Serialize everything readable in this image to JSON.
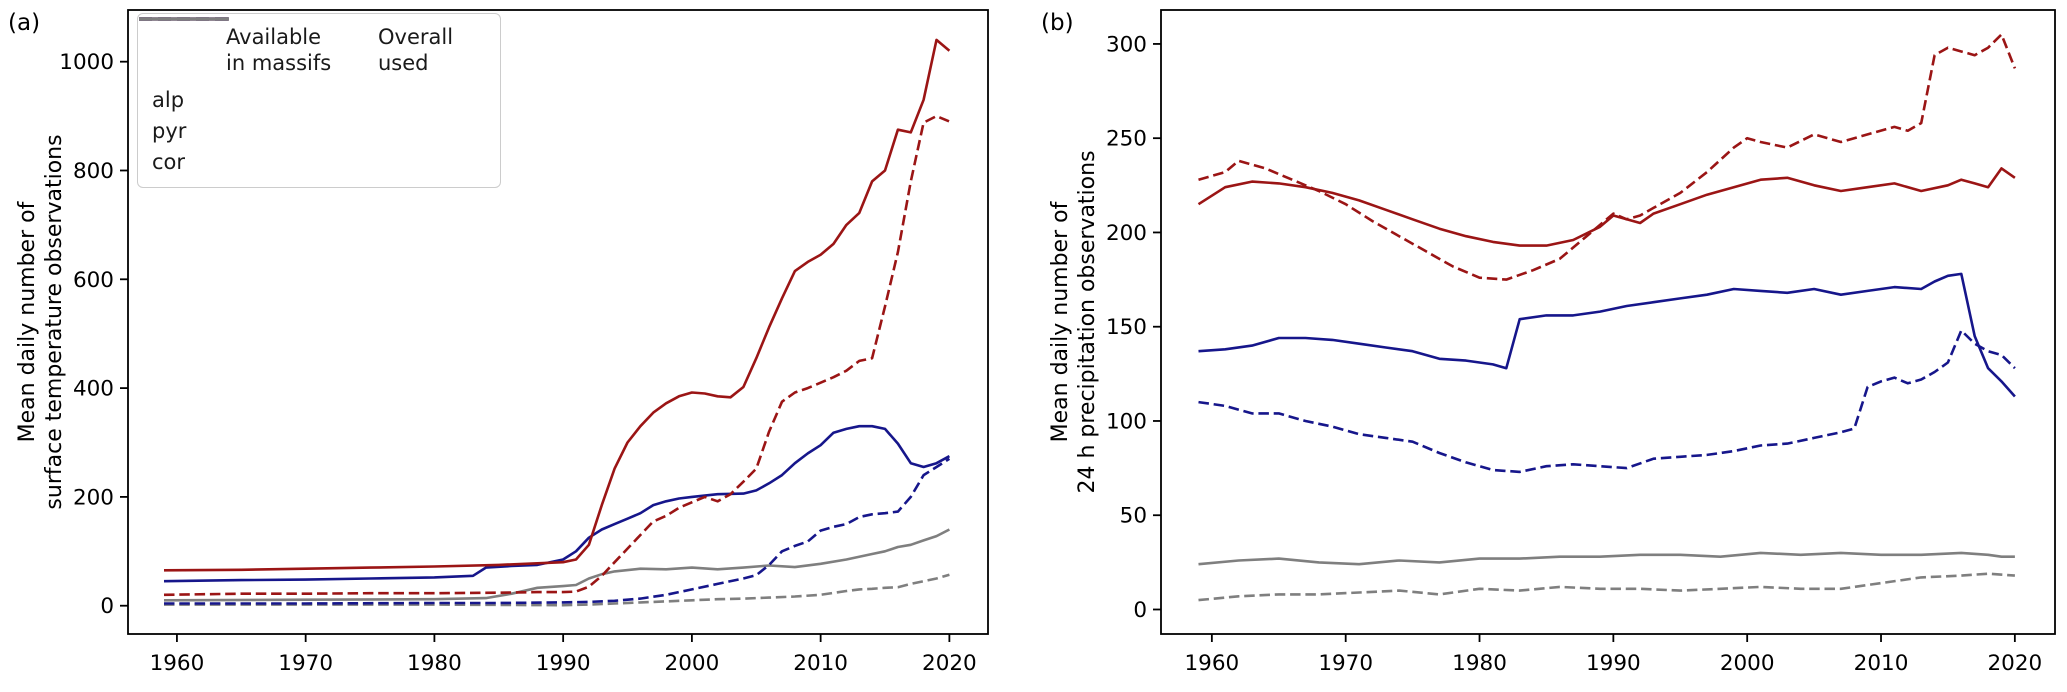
{
  "figure": {
    "background": "#ffffff"
  },
  "panels": [
    {
      "label": "(a)"
    },
    {
      "label": "(b)"
    }
  ],
  "legend": {
    "column_headers": [
      {
        "line1": "Available",
        "line2": "in massifs"
      },
      {
        "line1": "Overall",
        "line2": "used"
      }
    ],
    "rows": [
      {
        "label": "alp",
        "color": "#9b1515"
      },
      {
        "label": "pyr",
        "color": "#16168b"
      },
      {
        "label": "cor",
        "color": "#7f7f7f"
      }
    ]
  },
  "chart_data": [
    {
      "type": "line",
      "panel_label": "(a)",
      "ylabel_lines": [
        "Mean daily number of",
        "surface temperature observations"
      ],
      "xlabel": "",
      "xlim": [
        1956.2,
        2023
      ],
      "ylim": [
        -52,
        1095
      ],
      "xticks": [
        1960,
        1970,
        1980,
        1990,
        2000,
        2010,
        2020
      ],
      "yticks": [
        0,
        200,
        400,
        600,
        800,
        1000
      ],
      "grid": false,
      "legend_position": "upper-left",
      "series": [
        {
          "id": "cor-available",
          "name": "cor available in massifs",
          "color": "#7f7f7f",
          "dash": true,
          "x": [
            1959,
            1970,
            1980,
            1990,
            1992,
            1994,
            1996,
            1998,
            2000,
            2002,
            2004,
            2006,
            2008,
            2010,
            2012,
            2013,
            2014,
            2015,
            2016,
            2017,
            2018,
            2019,
            2020
          ],
          "y": [
            2,
            2,
            2,
            1,
            2,
            4,
            6,
            8,
            10,
            12,
            13,
            15,
            17,
            20,
            27,
            30,
            31,
            33,
            34,
            40,
            45,
            50,
            57
          ]
        },
        {
          "id": "cor-used",
          "name": "cor overall used",
          "color": "#7f7f7f",
          "dash": false,
          "x": [
            1959,
            1970,
            1980,
            1984,
            1986,
            1988,
            1990,
            1991,
            1992,
            1993,
            1994,
            1996,
            1998,
            2000,
            2002,
            2004,
            2006,
            2008,
            2010,
            2012,
            2014,
            2015,
            2016,
            2017,
            2018,
            2019,
            2020
          ],
          "y": [
            10,
            11,
            12,
            14,
            22,
            33,
            36,
            38,
            50,
            58,
            63,
            68,
            67,
            70,
            67,
            70,
            74,
            71,
            77,
            85,
            95,
            100,
            108,
            112,
            120,
            128,
            140
          ]
        },
        {
          "id": "pyr-available",
          "name": "pyr available in massifs",
          "color": "#16168b",
          "dash": true,
          "x": [
            1959,
            1970,
            1980,
            1985,
            1990,
            1992,
            1994,
            1996,
            1998,
            2000,
            2002,
            2004,
            2005,
            2006,
            2007,
            2008,
            2009,
            2010,
            2011,
            2012,
            2013,
            2014,
            2015,
            2016,
            2017,
            2018,
            2019,
            2020
          ],
          "y": [
            4,
            4,
            5,
            5,
            6,
            7,
            9,
            13,
            20,
            30,
            40,
            50,
            56,
            75,
            100,
            110,
            118,
            138,
            145,
            150,
            163,
            168,
            170,
            173,
            200,
            240,
            255,
            270
          ]
        },
        {
          "id": "pyr-used",
          "name": "pyr overall used",
          "color": "#16168b",
          "dash": false,
          "x": [
            1959,
            1965,
            1970,
            1975,
            1980,
            1983,
            1984,
            1986,
            1988,
            1990,
            1991,
            1992,
            1993,
            1994,
            1995,
            1996,
            1997,
            1998,
            1999,
            2000,
            2002,
            2004,
            2005,
            2006,
            2007,
            2008,
            2009,
            2010,
            2011,
            2012,
            2013,
            2014,
            2015,
            2016,
            2017,
            2018,
            2019,
            2020
          ],
          "y": [
            45,
            47,
            48,
            50,
            52,
            55,
            70,
            73,
            75,
            85,
            100,
            125,
            140,
            150,
            160,
            170,
            185,
            192,
            197,
            200,
            205,
            206,
            212,
            225,
            240,
            262,
            280,
            295,
            318,
            325,
            330,
            330,
            325,
            298,
            262,
            255,
            262,
            275
          ]
        },
        {
          "id": "alp-available",
          "name": "alp available in massifs",
          "color": "#9b1515",
          "dash": true,
          "x": [
            1959,
            1965,
            1970,
            1975,
            1980,
            1985,
            1988,
            1990,
            1991,
            1992,
            1993,
            1994,
            1995,
            1996,
            1997,
            1998,
            1999,
            2000,
            2001,
            2002,
            2003,
            2004,
            2005,
            2006,
            2007,
            2008,
            2009,
            2010,
            2011,
            2012,
            2013,
            2014,
            2015,
            2016,
            2017,
            2018,
            2019,
            2020
          ],
          "y": [
            20,
            22,
            22,
            23,
            23,
            24,
            25,
            25,
            26,
            35,
            55,
            80,
            105,
            130,
            155,
            165,
            180,
            190,
            200,
            192,
            205,
            228,
            252,
            320,
            375,
            392,
            400,
            410,
            420,
            432,
            450,
            455,
            550,
            650,
            780,
            888,
            900,
            890
          ]
        },
        {
          "id": "alp-used",
          "name": "alp overall used",
          "color": "#9b1515",
          "dash": false,
          "x": [
            1959,
            1965,
            1970,
            1975,
            1980,
            1985,
            1988,
            1990,
            1991,
            1992,
            1993,
            1994,
            1995,
            1996,
            1997,
            1998,
            1999,
            2000,
            2001,
            2002,
            2003,
            2004,
            2005,
            2006,
            2007,
            2008,
            2009,
            2010,
            2011,
            2012,
            2013,
            2014,
            2015,
            2016,
            2017,
            2018,
            2019,
            2020
          ],
          "y": [
            65,
            66,
            68,
            70,
            72,
            75,
            78,
            80,
            85,
            112,
            185,
            252,
            300,
            330,
            355,
            372,
            385,
            392,
            390,
            385,
            383,
            402,
            455,
            512,
            565,
            615,
            632,
            645,
            665,
            700,
            722,
            780,
            800,
            875,
            870,
            930,
            1040,
            1020
          ]
        }
      ]
    },
    {
      "type": "line",
      "panel_label": "(b)",
      "ylabel_lines": [
        "Mean daily number of",
        "24 h precipitation observations"
      ],
      "xlabel": "",
      "xlim": [
        1956.2,
        2023
      ],
      "ylim": [
        -13,
        318
      ],
      "xticks": [
        1960,
        1970,
        1980,
        1990,
        2000,
        2010,
        2020
      ],
      "yticks": [
        0,
        50,
        100,
        150,
        200,
        250,
        300
      ],
      "grid": false,
      "legend_position": "none",
      "series": [
        {
          "id": "cor-available",
          "name": "cor available in massifs",
          "color": "#7f7f7f",
          "dash": true,
          "x": [
            1959,
            1962,
            1965,
            1968,
            1971,
            1974,
            1977,
            1980,
            1983,
            1986,
            1989,
            1992,
            1995,
            1998,
            2001,
            2004,
            2007,
            2010,
            2013,
            2016,
            2018,
            2020
          ],
          "y": [
            5,
            7,
            8,
            8,
            9,
            10,
            8,
            11,
            10,
            12,
            11,
            11,
            10,
            11,
            12,
            11,
            11,
            14,
            17,
            18,
            19,
            18
          ]
        },
        {
          "id": "cor-used",
          "name": "cor overall used",
          "color": "#7f7f7f",
          "dash": false,
          "x": [
            1959,
            1962,
            1965,
            1968,
            1971,
            1974,
            1977,
            1980,
            1983,
            1986,
            1989,
            1992,
            1995,
            1998,
            2001,
            2004,
            2007,
            2010,
            2013,
            2016,
            2018,
            2019,
            2020
          ],
          "y": [
            24,
            26,
            27,
            25,
            24,
            26,
            25,
            27,
            27,
            28,
            28,
            29,
            29,
            28,
            30,
            29,
            30,
            29,
            29,
            30,
            29,
            28,
            28
          ]
        },
        {
          "id": "pyr-available",
          "name": "pyr available in massifs",
          "color": "#16168b",
          "dash": true,
          "x": [
            1959,
            1961,
            1963,
            1965,
            1967,
            1969,
            1971,
            1973,
            1975,
            1977,
            1979,
            1981,
            1983,
            1985,
            1987,
            1989,
            1991,
            1993,
            1995,
            1997,
            1999,
            2001,
            2003,
            2005,
            2007,
            2008,
            2009,
            2010,
            2011,
            2012,
            2013,
            2014,
            2015,
            2016,
            2017,
            2018,
            2019,
            2020
          ],
          "y": [
            110,
            108,
            104,
            104,
            100,
            97,
            93,
            91,
            89,
            83,
            78,
            74,
            73,
            76,
            77,
            76,
            75,
            80,
            81,
            82,
            84,
            87,
            88,
            91,
            94,
            96,
            118,
            121,
            123,
            120,
            122,
            126,
            131,
            148,
            141,
            137,
            135,
            128
          ]
        },
        {
          "id": "pyr-used",
          "name": "pyr overall used",
          "color": "#16168b",
          "dash": false,
          "x": [
            1959,
            1961,
            1963,
            1965,
            1967,
            1969,
            1971,
            1973,
            1975,
            1977,
            1979,
            1981,
            1982,
            1983,
            1985,
            1987,
            1989,
            1991,
            1993,
            1995,
            1997,
            1999,
            2001,
            2003,
            2005,
            2007,
            2009,
            2011,
            2013,
            2014,
            2015,
            2016,
            2017,
            2018,
            2019,
            2020
          ],
          "y": [
            137,
            138,
            140,
            144,
            144,
            143,
            141,
            139,
            137,
            133,
            132,
            130,
            128,
            154,
            156,
            156,
            158,
            161,
            163,
            165,
            167,
            170,
            169,
            168,
            170,
            167,
            169,
            171,
            170,
            174,
            177,
            178,
            145,
            128,
            121,
            113
          ]
        },
        {
          "id": "alp-available",
          "name": "alp available in massifs",
          "color": "#9b1515",
          "dash": true,
          "x": [
            1959,
            1961,
            1962,
            1964,
            1966,
            1968,
            1970,
            1972,
            1974,
            1976,
            1978,
            1980,
            1982,
            1984,
            1986,
            1988,
            1990,
            1991,
            1992,
            1993,
            1995,
            1997,
            1999,
            2000,
            2001,
            2003,
            2005,
            2007,
            2009,
            2011,
            2012,
            2013,
            2014,
            2015,
            2016,
            2017,
            2018,
            2019,
            2020
          ],
          "y": [
            228,
            232,
            238,
            234,
            228,
            222,
            215,
            206,
            198,
            190,
            182,
            176,
            175,
            180,
            186,
            198,
            210,
            207,
            209,
            213,
            221,
            232,
            245,
            250,
            248,
            245,
            252,
            248,
            252,
            256,
            254,
            258,
            294,
            298,
            296,
            294,
            298,
            305,
            287
          ]
        },
        {
          "id": "alp-used",
          "name": "alp overall used",
          "color": "#9b1515",
          "dash": false,
          "x": [
            1959,
            1961,
            1963,
            1965,
            1967,
            1969,
            1971,
            1973,
            1975,
            1977,
            1979,
            1981,
            1983,
            1985,
            1987,
            1989,
            1990,
            1991,
            1992,
            1993,
            1995,
            1997,
            1999,
            2001,
            2003,
            2005,
            2007,
            2009,
            2011,
            2013,
            2015,
            2016,
            2017,
            2018,
            2019,
            2020
          ],
          "y": [
            215,
            224,
            227,
            226,
            224,
            221,
            217,
            212,
            207,
            202,
            198,
            195,
            193,
            193,
            196,
            203,
            209,
            207,
            205,
            210,
            215,
            220,
            224,
            228,
            229,
            225,
            222,
            224,
            226,
            222,
            225,
            228,
            226,
            224,
            234,
            229
          ]
        }
      ]
    }
  ]
}
